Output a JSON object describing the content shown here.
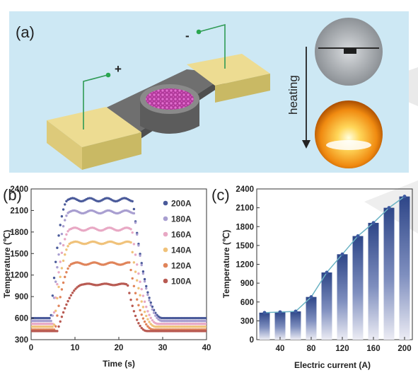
{
  "panel_a": {
    "label": "(a)",
    "plus": "+",
    "minus": "-",
    "heating": "heating"
  },
  "chart_data": [
    {
      "id": "b",
      "panel_label": "(b)",
      "type": "line",
      "xlabel": "Time (s)",
      "ylabel": "Temperature (℃)",
      "xlim": [
        0,
        40
      ],
      "ylim": [
        300,
        2400
      ],
      "xticks": [
        0,
        10,
        20,
        30,
        40
      ],
      "yticks": [
        300,
        600,
        900,
        1200,
        1500,
        1800,
        2100,
        2400
      ],
      "legend_position": "right",
      "series": [
        {
          "name": "200A",
          "color": "#4a5a9a",
          "baseline": 600,
          "plateau": 2250,
          "t_rise": 4.5,
          "t_plat": 8.5,
          "t_fall": 23.2,
          "t_end": 30,
          "ripple": 22
        },
        {
          "name": "180A",
          "color": "#a89ed0",
          "baseline": 560,
          "plateau": 2080,
          "t_rise": 4.8,
          "t_plat": 8.8,
          "t_fall": 23.5,
          "t_end": 30,
          "ripple": 20
        },
        {
          "name": "160A",
          "color": "#e8a8c4",
          "baseline": 520,
          "plateau": 1840,
          "t_rise": 5,
          "t_plat": 9,
          "t_fall": 23,
          "t_end": 29,
          "ripple": 20
        },
        {
          "name": "140A",
          "color": "#f0c27a",
          "baseline": 480,
          "plateau": 1650,
          "t_rise": 5.2,
          "t_plat": 9.2,
          "t_fall": 22.8,
          "t_end": 28.5,
          "ripple": 16
        },
        {
          "name": "120A",
          "color": "#e0845a",
          "baseline": 440,
          "plateau": 1360,
          "t_rise": 5.5,
          "t_plat": 9.5,
          "t_fall": 22.5,
          "t_end": 28,
          "ripple": 16
        },
        {
          "name": "100A",
          "color": "#b85a52",
          "baseline": 420,
          "plateau": 1070,
          "t_rise": 6,
          "t_plat": 12,
          "t_fall": 22,
          "t_end": 26.5,
          "ripple": 10
        }
      ]
    },
    {
      "id": "c",
      "panel_label": "(c)",
      "type": "bar",
      "xlabel": "Electric current (A)",
      "ylabel": "Temperature (℃)",
      "xlim": [
        10,
        210
      ],
      "ylim": [
        0,
        2400
      ],
      "xticks": [
        40,
        80,
        120,
        160,
        200
      ],
      "yticks": [
        0,
        300,
        600,
        900,
        1200,
        1500,
        1800,
        2100,
        2400
      ],
      "x": [
        20,
        40,
        60,
        80,
        100,
        120,
        140,
        160,
        180,
        200
      ],
      "values": [
        430,
        440,
        450,
        680,
        1070,
        1360,
        1650,
        1860,
        2100,
        2280
      ]
    }
  ]
}
